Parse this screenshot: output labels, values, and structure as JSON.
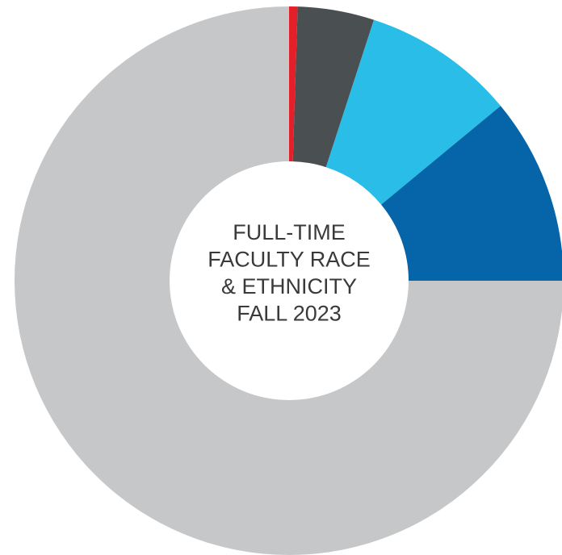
{
  "chart_data": {
    "type": "donut",
    "title": [
      "FULL-TIME",
      "FACULTY RACE",
      "& ETHNICITY",
      "FALL 2023"
    ],
    "values": [
      0.5,
      4.5,
      9,
      11,
      75
    ],
    "colors": [
      "#e3202a",
      "#4a5052",
      "#2abde8",
      "#0565a8",
      "#c6c7c9"
    ]
  }
}
